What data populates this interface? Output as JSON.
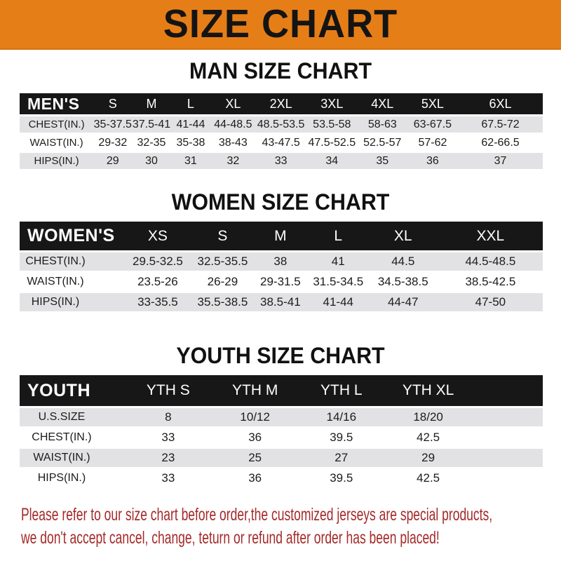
{
  "banner": {
    "title": "SIZE CHART"
  },
  "colors": {
    "banner_bg": "#E67E17",
    "header_bg": "#171717",
    "stripe": "#E2E2E4",
    "footer_text": "#A52A2A"
  },
  "sections": [
    {
      "title": "MAN SIZE CHART",
      "table": {
        "header": [
          "MEN'S",
          "S",
          "M",
          "L",
          "XL",
          "2XL",
          "3XL",
          "4XL",
          "5XL",
          "6XL"
        ],
        "rows": [
          [
            "CHEST(IN.)",
            "35-37.5",
            "37.5-41",
            "41-44",
            "44-48.5",
            "48.5-53.5",
            "53.5-58",
            "58-63",
            "63-67.5",
            "67.5-72"
          ],
          [
            "WAIST(IN.)",
            "29-32",
            "32-35",
            "35-38",
            "38-43",
            "43-47.5",
            "47.5-52.5",
            "52.5-57",
            "57-62",
            "62-66.5"
          ],
          [
            "HIPS(IN.)",
            "29",
            "30",
            "31",
            "32",
            "33",
            "34",
            "35",
            "36",
            "37"
          ]
        ]
      }
    },
    {
      "title": "WOMEN SIZE CHART",
      "table": {
        "header": [
          "WOMEN'S",
          "XS",
          "S",
          "M",
          "L",
          "XL",
          "XXL"
        ],
        "rows": [
          [
            "CHEST(IN.)",
            "29.5-32.5",
            "32.5-35.5",
            "38",
            "41",
            "44.5",
            "44.5-48.5"
          ],
          [
            "WAIST(IN.)",
            "23.5-26",
            "26-29",
            "29-31.5",
            "31.5-34.5",
            "34.5-38.5",
            "38.5-42.5"
          ],
          [
            "HIPS(IN.)",
            "33-35.5",
            "35.5-38.5",
            "38.5-41",
            "41-44",
            "44-47",
            "47-50"
          ]
        ]
      }
    },
    {
      "title": "YOUTH SIZE CHART",
      "table": {
        "header": [
          "YOUTH",
          "YTH S",
          "YTH M",
          "YTH L",
          "YTH XL"
        ],
        "rows": [
          [
            "U.S.SIZE",
            "8",
            "10/12",
            "14/16",
            "18/20"
          ],
          [
            "CHEST(IN.)",
            "33",
            "36",
            "39.5",
            "42.5"
          ],
          [
            "WAIST(IN.)",
            "23",
            "25",
            "27",
            "29"
          ],
          [
            "HIPS(IN.)",
            "33",
            "36",
            "39.5",
            "42.5"
          ]
        ]
      }
    }
  ],
  "footer": {
    "line1": "Please refer to our size chart before order,the customized jerseys are special products,",
    "line2": "we don't accept cancel, change, teturn or refund after order has been placed!"
  }
}
